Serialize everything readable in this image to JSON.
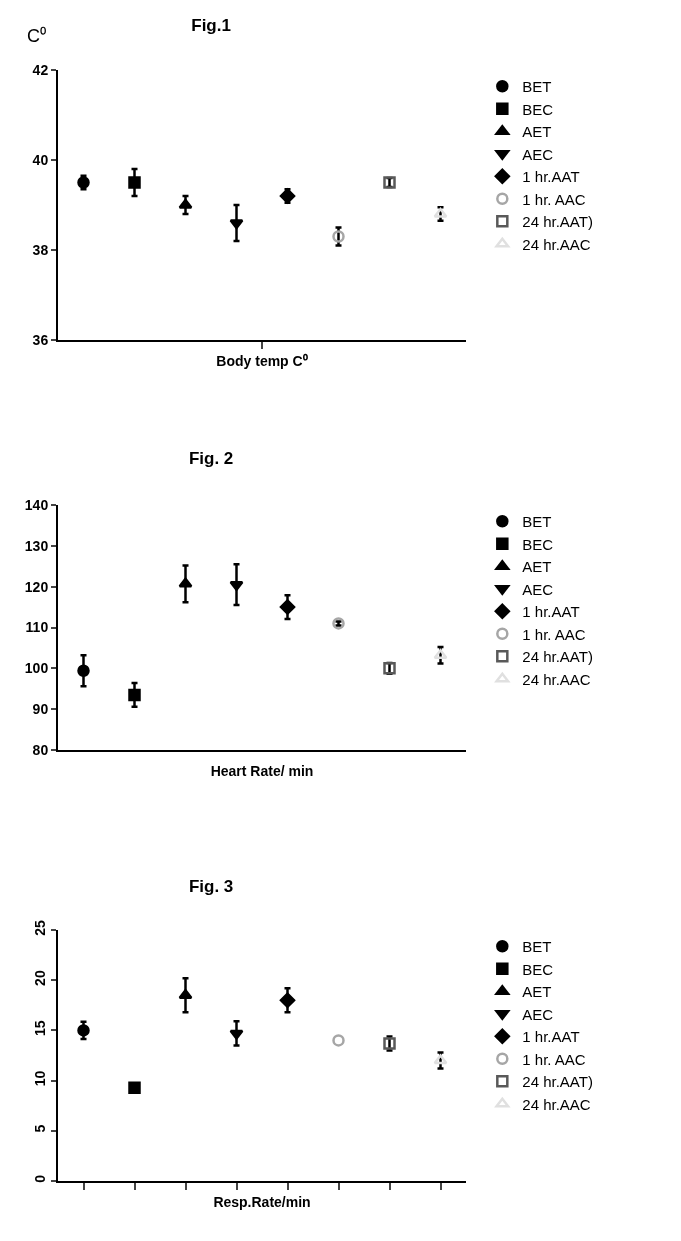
{
  "chart_data": [
    {
      "type": "scatter",
      "title": "Fig.1",
      "ylabel": "C⁰",
      "xlabel": "Body temp C⁰",
      "categories": [
        null,
        null,
        null,
        null,
        null,
        null,
        null,
        null
      ],
      "ylim": [
        36,
        42
      ],
      "yticks": [
        36,
        38,
        40,
        42
      ],
      "tick_labels": "y",
      "legend": "right",
      "series": [
        {
          "name": "BET",
          "color": "#000000",
          "marker": "circle",
          "values": [
            39.5,
            null,
            null,
            null,
            null,
            null,
            null,
            null
          ],
          "errors": [
            0.15,
            null,
            null,
            null,
            null,
            null,
            null,
            null
          ]
        },
        {
          "name": "BEC",
          "color": "#000000",
          "marker": "square",
          "values": [
            null,
            39.5,
            null,
            null,
            null,
            null,
            null,
            null
          ],
          "errors": [
            null,
            0.3,
            null,
            null,
            null,
            null,
            null,
            null
          ]
        },
        {
          "name": "AET",
          "color": "#000000",
          "marker": "triangle",
          "values": [
            null,
            null,
            39.0,
            null,
            null,
            null,
            null,
            null
          ],
          "errors": [
            null,
            null,
            0.2,
            null,
            null,
            null,
            null,
            null
          ]
        },
        {
          "name": "AEC",
          "color": "#000000",
          "marker": "triangle-down",
          "values": [
            null,
            null,
            null,
            38.6,
            null,
            null,
            null,
            null
          ],
          "errors": [
            null,
            null,
            null,
            0.4,
            null,
            null,
            null,
            null
          ]
        },
        {
          "name": "1 hr.AAT",
          "color": "#000000",
          "marker": "diamond",
          "values": [
            null,
            null,
            null,
            null,
            39.2,
            null,
            null,
            null
          ],
          "errors": [
            null,
            null,
            null,
            null,
            0.15,
            null,
            null,
            null
          ]
        },
        {
          "name": "1 hr. AAC",
          "color": "#a6a6a6",
          "marker": "circle-open",
          "values": [
            null,
            null,
            null,
            null,
            null,
            38.3,
            null,
            null
          ],
          "errors": [
            null,
            null,
            null,
            null,
            null,
            0.2,
            null,
            null
          ]
        },
        {
          "name": "24 hr.AAT)",
          "color": "#595959",
          "marker": "square-open",
          "values": [
            null,
            null,
            null,
            null,
            null,
            null,
            39.5,
            null
          ],
          "errors": [
            null,
            null,
            null,
            null,
            null,
            null,
            0.1,
            null
          ]
        },
        {
          "name": "24 hr.AAC",
          "color": "#e0e0e0",
          "marker": "triangle-open",
          "values": [
            null,
            null,
            null,
            null,
            null,
            null,
            null,
            38.8
          ],
          "errors": [
            null,
            null,
            null,
            null,
            null,
            null,
            null,
            0.15
          ]
        }
      ]
    },
    {
      "type": "scatter",
      "title": "Fig. 2",
      "xlabel": "Heart Rate/ min",
      "categories": [
        null,
        null,
        null,
        null,
        null,
        null,
        null,
        null
      ],
      "ylim": [
        80,
        140
      ],
      "yticks": [
        80,
        90,
        100,
        110,
        120,
        130,
        140
      ],
      "tick_labels": "y",
      "legend": "right",
      "series": [
        {
          "name": "BET",
          "color": "#000000",
          "marker": "circle",
          "values": [
            99.4,
            null,
            null,
            null,
            null,
            null,
            null,
            null
          ],
          "errors": [
            3.8,
            null,
            null,
            null,
            null,
            null,
            null,
            null
          ]
        },
        {
          "name": "BEC",
          "color": "#000000",
          "marker": "square",
          "values": [
            null,
            93.5,
            null,
            null,
            null,
            null,
            null,
            null
          ],
          "errors": [
            null,
            2.9,
            null,
            null,
            null,
            null,
            null,
            null
          ]
        },
        {
          "name": "AET",
          "color": "#000000",
          "marker": "triangle",
          "values": [
            null,
            null,
            120.7,
            null,
            null,
            null,
            null,
            null
          ],
          "errors": [
            null,
            null,
            4.5,
            null,
            null,
            null,
            null,
            null
          ]
        },
        {
          "name": "AEC",
          "color": "#000000",
          "marker": "triangle-down",
          "values": [
            null,
            null,
            null,
            120.5,
            null,
            null,
            null,
            null
          ],
          "errors": [
            null,
            null,
            null,
            5,
            null,
            null,
            null,
            null
          ]
        },
        {
          "name": "1 hr.AAT",
          "color": "#000000",
          "marker": "diamond",
          "values": [
            null,
            null,
            null,
            null,
            115,
            null,
            null,
            null
          ],
          "errors": [
            null,
            null,
            null,
            null,
            2.9,
            null,
            null,
            null
          ]
        },
        {
          "name": "1 hr. AAC",
          "color": "#a6a6a6",
          "marker": "circle-open",
          "values": [
            null,
            null,
            null,
            null,
            null,
            111,
            null,
            null
          ],
          "errors": [
            null,
            null,
            null,
            null,
            null,
            0.5,
            null,
            null
          ]
        },
        {
          "name": "24 hr.AAT)",
          "color": "#595959",
          "marker": "square-open",
          "values": [
            null,
            null,
            null,
            null,
            null,
            null,
            100,
            null
          ],
          "errors": [
            null,
            null,
            null,
            null,
            null,
            null,
            1.3,
            null
          ]
        },
        {
          "name": "24 hr.AAC",
          "color": "#e0e0e0",
          "marker": "triangle-open",
          "values": [
            null,
            null,
            null,
            null,
            null,
            null,
            null,
            103.2
          ],
          "errors": [
            null,
            null,
            null,
            null,
            null,
            null,
            null,
            2
          ]
        }
      ]
    },
    {
      "type": "scatter",
      "title": "Fig. 3",
      "xlabel": "Resp.Rate/min",
      "categories": [
        null,
        null,
        null,
        null,
        null,
        null,
        null,
        null
      ],
      "ylim": [
        0,
        25
      ],
      "yticks": [
        0,
        5,
        10,
        15,
        20,
        25
      ],
      "tick_labels": "y",
      "legend": "right",
      "series": [
        {
          "name": "BET",
          "color": "#000000",
          "marker": "circle",
          "values": [
            15,
            null,
            null,
            null,
            null,
            null,
            null,
            null
          ],
          "errors": [
            0.85,
            null,
            null,
            null,
            null,
            null,
            null,
            null
          ]
        },
        {
          "name": "BEC",
          "color": "#000000",
          "marker": "square",
          "values": [
            null,
            9.3,
            null,
            null,
            null,
            null,
            null,
            null
          ]
        },
        {
          "name": "AET",
          "color": "#000000",
          "marker": "triangle",
          "values": [
            null,
            null,
            18.5,
            null,
            null,
            null,
            null,
            null
          ],
          "errors": [
            null,
            null,
            1.7,
            null,
            null,
            null,
            null,
            null
          ]
        },
        {
          "name": "AEC",
          "color": "#000000",
          "marker": "triangle-down",
          "values": [
            null,
            null,
            null,
            14.7,
            null,
            null,
            null,
            null
          ],
          "errors": [
            null,
            null,
            null,
            1.2,
            null,
            null,
            null,
            null
          ]
        },
        {
          "name": "1 hr.AAT",
          "color": "#000000",
          "marker": "diamond",
          "values": [
            null,
            null,
            null,
            null,
            18,
            null,
            null,
            null
          ],
          "errors": [
            null,
            null,
            null,
            null,
            1.2,
            null,
            null,
            null
          ]
        },
        {
          "name": "1 hr. AAC",
          "color": "#a6a6a6",
          "marker": "circle-open",
          "values": [
            null,
            null,
            null,
            null,
            null,
            14,
            null,
            null
          ]
        },
        {
          "name": "24 hr.AAT)",
          "color": "#595959",
          "marker": "square-open",
          "values": [
            null,
            null,
            null,
            null,
            null,
            null,
            13.7,
            null
          ],
          "errors": [
            null,
            null,
            null,
            null,
            null,
            null,
            0.7,
            null
          ]
        },
        {
          "name": "24 hr.AAC",
          "color": "#e0e0e0",
          "marker": "triangle-open",
          "values": [
            null,
            null,
            null,
            null,
            null,
            null,
            null,
            12
          ],
          "errors": [
            null,
            null,
            null,
            null,
            null,
            null,
            null,
            0.8
          ]
        }
      ]
    }
  ]
}
